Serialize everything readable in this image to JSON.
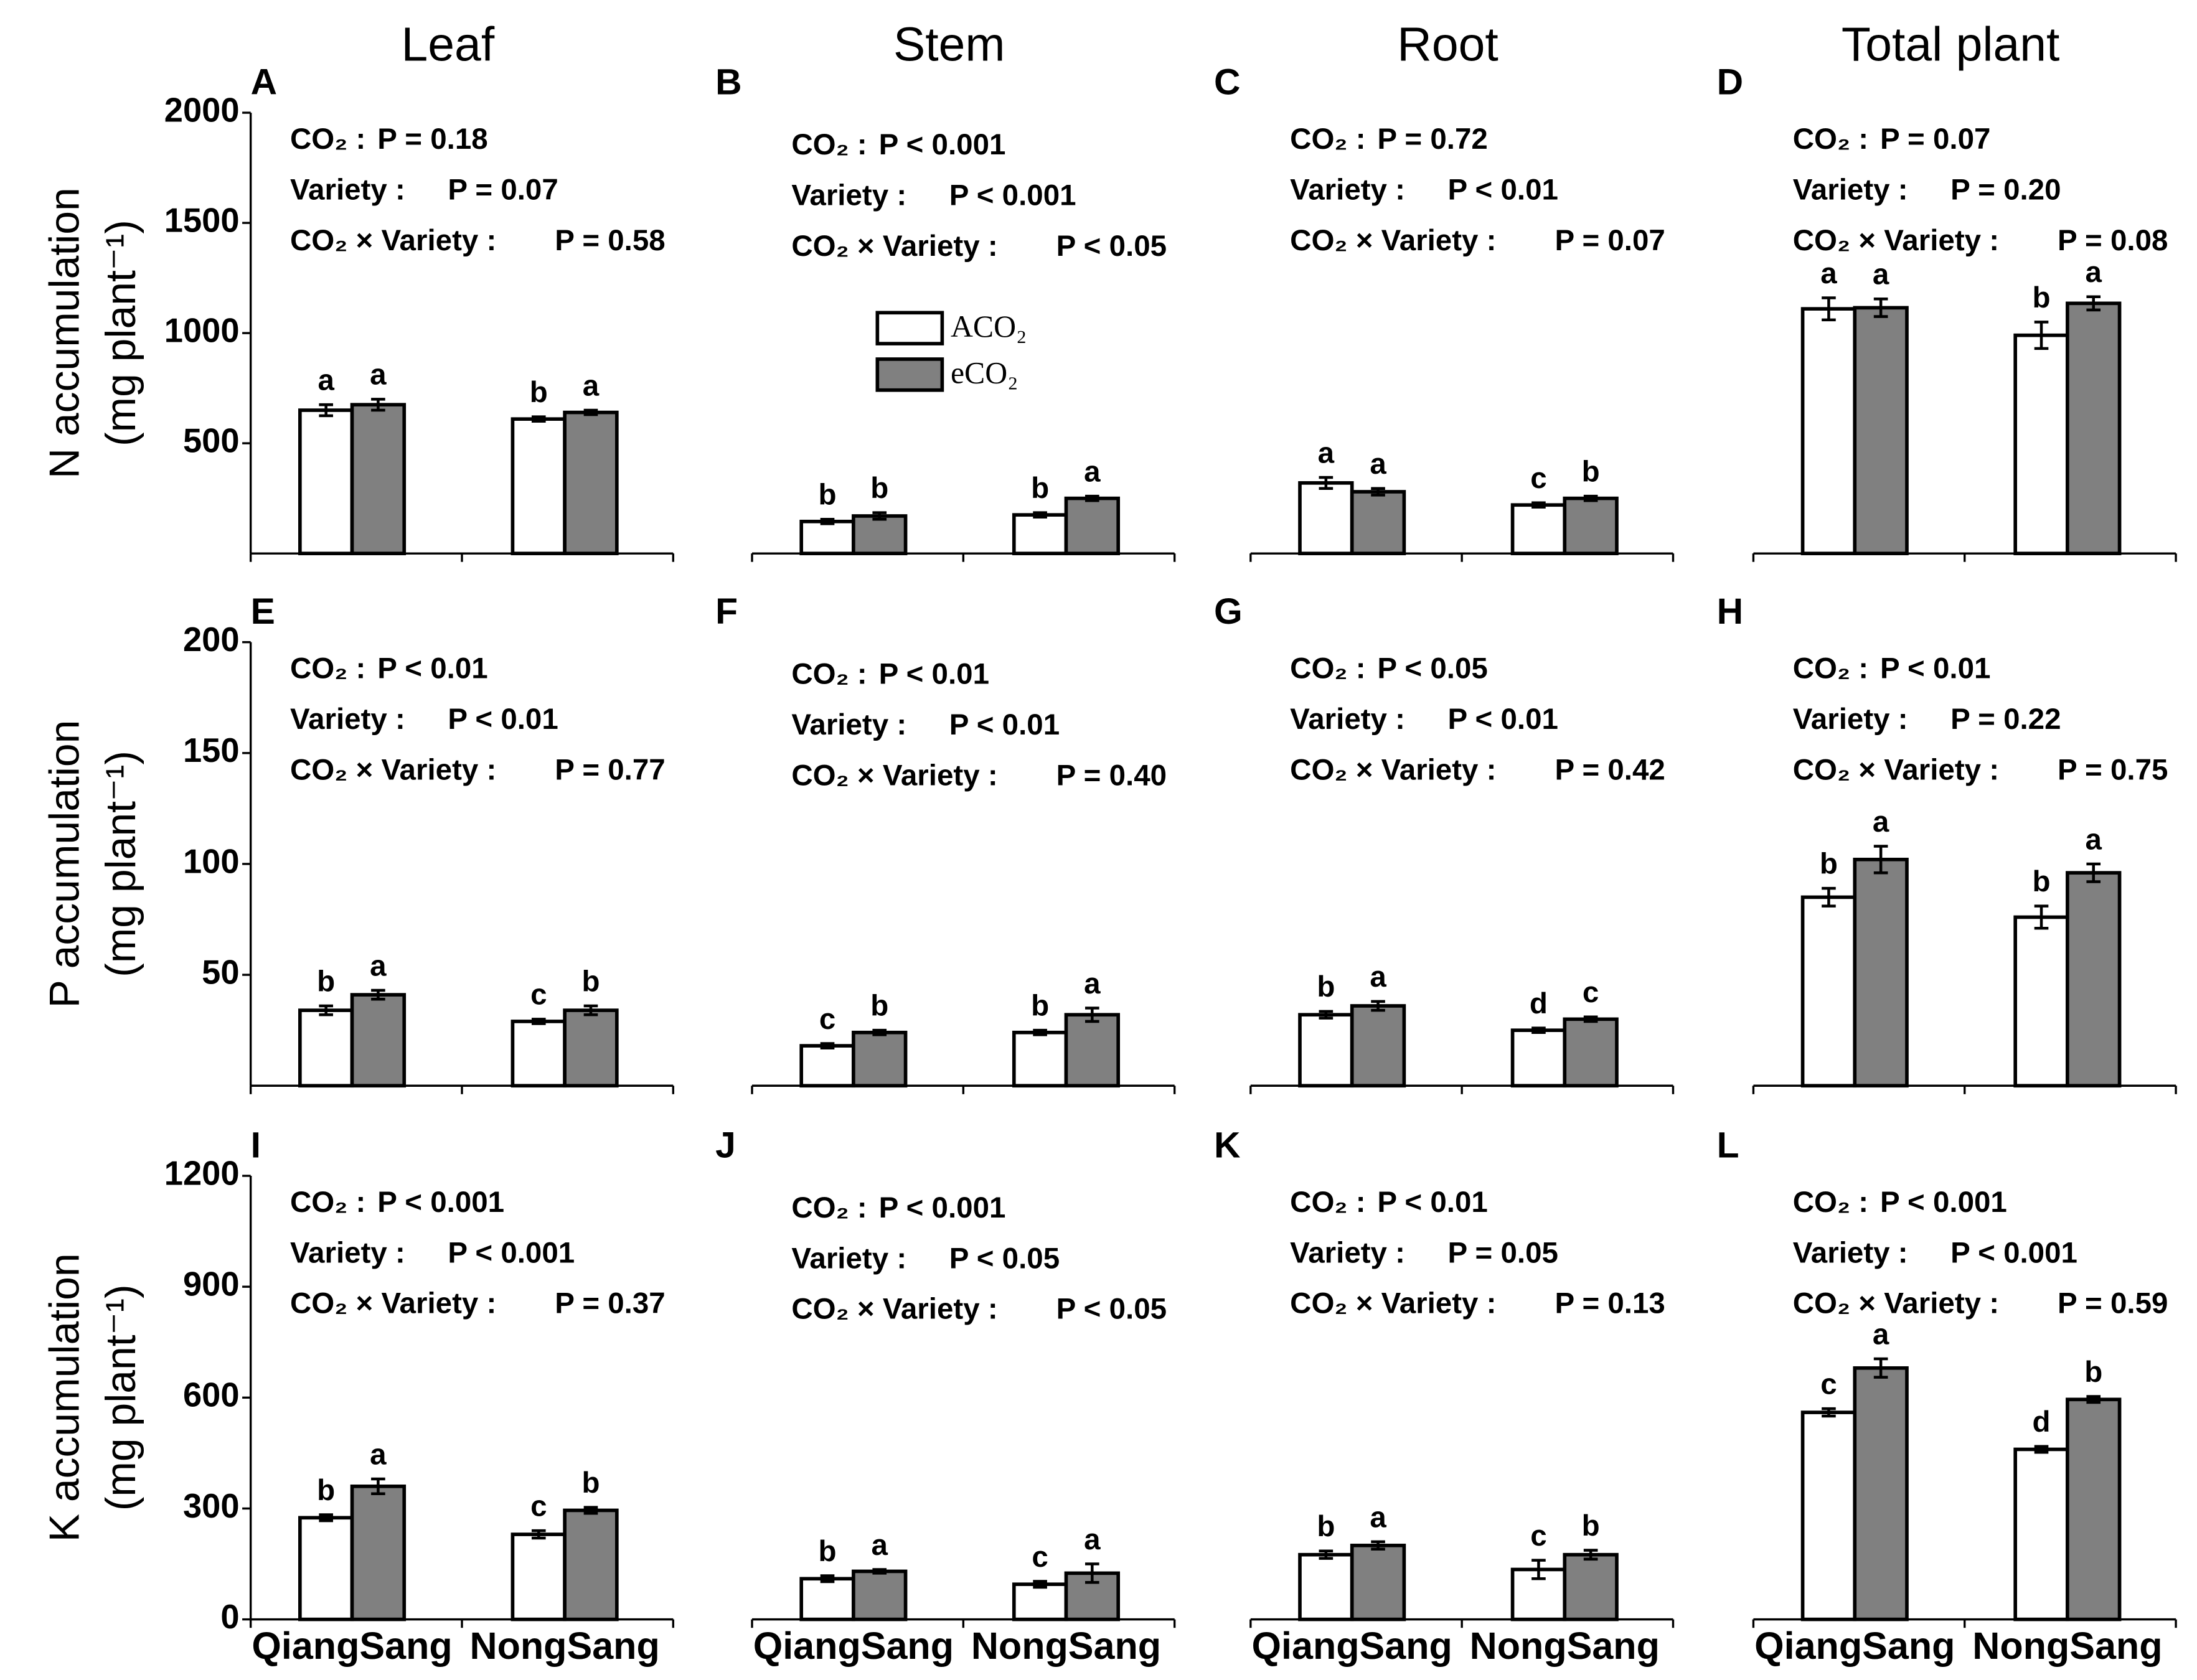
{
  "chart_data": [
    {
      "type": "bar",
      "panel": "A",
      "column_title": "Leaf",
      "ylabel": [
        "N accumulation",
        "(mg plant⁻¹)"
      ],
      "ylim": [
        0,
        2000
      ],
      "yticks": [
        500,
        1000,
        1500,
        2000
      ],
      "stats": [
        {
          "term": "CO₂ :",
          "p": "P = 0.18"
        },
        {
          "term": "Variety :",
          "p": "P = 0.07"
        },
        {
          "term": "CO₂ × Variety :",
          "p": "P = 0.58"
        }
      ],
      "series": [
        {
          "color": "#ffffff",
          "values": [
            650,
            610
          ],
          "errors": [
            25,
            10
          ],
          "letters": [
            "a",
            "b"
          ]
        },
        {
          "color": "#808080",
          "values": [
            675,
            640
          ],
          "errors": [
            25,
            10
          ],
          "letters": [
            "a",
            "a"
          ]
        }
      ]
    },
    {
      "type": "bar",
      "panel": "B",
      "column_title": "Stem",
      "ylim": [
        0,
        2000
      ],
      "stats": [
        {
          "term": "CO₂ :",
          "p": "P < 0.001"
        },
        {
          "term": "Variety :",
          "p": "P < 0.001"
        },
        {
          "term": "CO₂ × Variety :",
          "p": "P < 0.05"
        }
      ],
      "series": [
        {
          "name": "ACO₂",
          "color": "#ffffff",
          "values": [
            145,
            175
          ],
          "errors": [
            10,
            10
          ],
          "letters": [
            "b",
            "b"
          ]
        },
        {
          "name": "eCO₂",
          "color": "#808080",
          "values": [
            170,
            250
          ],
          "errors": [
            15,
            10
          ],
          "letters": [
            "b",
            "a"
          ]
        }
      ]
    },
    {
      "type": "bar",
      "panel": "C",
      "column_title": "Root",
      "ylim": [
        0,
        2000
      ],
      "stats": [
        {
          "term": "CO₂ :",
          "p": "P = 0.72"
        },
        {
          "term": "Variety :",
          "p": "P < 0.01"
        },
        {
          "term": "CO₂ × Variety :",
          "p": "P = 0.07"
        }
      ],
      "series": [
        {
          "color": "#ffffff",
          "values": [
            320,
            220
          ],
          "errors": [
            25,
            10
          ],
          "letters": [
            "a",
            "c"
          ]
        },
        {
          "color": "#808080",
          "values": [
            280,
            250
          ],
          "errors": [
            15,
            10
          ],
          "letters": [
            "a",
            "b"
          ]
        }
      ]
    },
    {
      "type": "bar",
      "panel": "D",
      "column_title": "Total plant",
      "ylim": [
        0,
        2000
      ],
      "stats": [
        {
          "term": "CO₂ :",
          "p": "P = 0.07"
        },
        {
          "term": "Variety :",
          "p": "P = 0.20"
        },
        {
          "term": "CO₂ × Variety :",
          "p": "P = 0.08"
        }
      ],
      "series": [
        {
          "color": "#ffffff",
          "values": [
            1110,
            990
          ],
          "errors": [
            50,
            60
          ],
          "letters": [
            "a",
            "b"
          ]
        },
        {
          "color": "#808080",
          "values": [
            1115,
            1135
          ],
          "errors": [
            40,
            30
          ],
          "letters": [
            "a",
            "a"
          ]
        }
      ]
    },
    {
      "type": "bar",
      "panel": "E",
      "ylabel": [
        "P accumulation",
        "(mg plant⁻¹)"
      ],
      "ylim": [
        0,
        200
      ],
      "yticks": [
        50,
        100,
        150,
        200
      ],
      "stats": [
        {
          "term": "CO₂ :",
          "p": "P < 0.01"
        },
        {
          "term": "Variety :",
          "p": "P < 0.01"
        },
        {
          "term": "CO₂ × Variety :",
          "p": "P = 0.77"
        }
      ],
      "series": [
        {
          "color": "#ffffff",
          "values": [
            34,
            29
          ],
          "errors": [
            2,
            1
          ],
          "letters": [
            "b",
            "c"
          ]
        },
        {
          "color": "#808080",
          "values": [
            41,
            34
          ],
          "errors": [
            2,
            2
          ],
          "letters": [
            "a",
            "b"
          ]
        }
      ]
    },
    {
      "type": "bar",
      "panel": "F",
      "ylim": [
        0,
        200
      ],
      "stats": [
        {
          "term": "CO₂ :",
          "p": "P < 0.01"
        },
        {
          "term": "Variety :",
          "p": "P < 0.01"
        },
        {
          "term": "CO₂ × Variety :",
          "p": "P = 0.40"
        }
      ],
      "series": [
        {
          "color": "#ffffff",
          "values": [
            18,
            24
          ],
          "errors": [
            1,
            1
          ],
          "letters": [
            "c",
            "b"
          ]
        },
        {
          "color": "#808080",
          "values": [
            24,
            32
          ],
          "errors": [
            1,
            3
          ],
          "letters": [
            "b",
            "a"
          ]
        }
      ]
    },
    {
      "type": "bar",
      "panel": "G",
      "ylim": [
        0,
        200
      ],
      "stats": [
        {
          "term": "CO₂ :",
          "p": "P < 0.05"
        },
        {
          "term": "Variety :",
          "p": "P < 0.01"
        },
        {
          "term": "CO₂ × Variety :",
          "p": "P = 0.42"
        }
      ],
      "series": [
        {
          "color": "#ffffff",
          "values": [
            32,
            25
          ],
          "errors": [
            1.5,
            1
          ],
          "letters": [
            "b",
            "d"
          ]
        },
        {
          "color": "#808080",
          "values": [
            36,
            30
          ],
          "errors": [
            2,
            1
          ],
          "letters": [
            "a",
            "c"
          ]
        }
      ]
    },
    {
      "type": "bar",
      "panel": "H",
      "ylim": [
        0,
        200
      ],
      "stats": [
        {
          "term": "CO₂ :",
          "p": "P < 0.01"
        },
        {
          "term": "Variety :",
          "p": "P = 0.22"
        },
        {
          "term": "CO₂ × Variety :",
          "p": "P = 0.75"
        }
      ],
      "series": [
        {
          "color": "#ffffff",
          "values": [
            85,
            76
          ],
          "errors": [
            4,
            5
          ],
          "letters": [
            "b",
            "b"
          ]
        },
        {
          "color": "#808080",
          "values": [
            102,
            96
          ],
          "errors": [
            6,
            4
          ],
          "letters": [
            "a",
            "a"
          ]
        }
      ]
    },
    {
      "type": "bar",
      "panel": "I",
      "ylabel": [
        "K accumulation",
        "(mg plant⁻¹)"
      ],
      "ylim": [
        0,
        1200
      ],
      "yticks": [
        0,
        300,
        600,
        900,
        1200
      ],
      "categories": [
        "QiangSang",
        "NongSang"
      ],
      "stats": [
        {
          "term": "CO₂ :",
          "p": "P < 0.001"
        },
        {
          "term": "Variety :",
          "p": "P < 0.001"
        },
        {
          "term": "CO₂ × Variety :",
          "p": "P = 0.37"
        }
      ],
      "series": [
        {
          "color": "#ffffff",
          "values": [
            275,
            230
          ],
          "errors": [
            8,
            10
          ],
          "letters": [
            "b",
            "c"
          ]
        },
        {
          "color": "#808080",
          "values": [
            360,
            295
          ],
          "errors": [
            20,
            8
          ],
          "letters": [
            "a",
            "b"
          ]
        }
      ]
    },
    {
      "type": "bar",
      "panel": "J",
      "ylim": [
        0,
        1200
      ],
      "categories": [
        "QiangSang",
        "NongSang"
      ],
      "stats": [
        {
          "term": "CO₂ :",
          "p": "P < 0.001"
        },
        {
          "term": "Variety :",
          "p": "P < 0.05"
        },
        {
          "term": "CO₂ × Variety :",
          "p": "P < 0.05"
        }
      ],
      "series": [
        {
          "color": "#ffffff",
          "values": [
            110,
            95
          ],
          "errors": [
            8,
            8
          ],
          "letters": [
            "b",
            "c"
          ]
        },
        {
          "color": "#808080",
          "values": [
            130,
            125
          ],
          "errors": [
            5,
            25
          ],
          "letters": [
            "a",
            "a"
          ]
        }
      ]
    },
    {
      "type": "bar",
      "panel": "K",
      "ylim": [
        0,
        1200
      ],
      "categories": [
        "QiangSang",
        "NongSang"
      ],
      "stats": [
        {
          "term": "CO₂ :",
          "p": "P < 0.01"
        },
        {
          "term": "Variety :",
          "p": "P = 0.05"
        },
        {
          "term": "CO₂ × Variety :",
          "p": "P = 0.13"
        }
      ],
      "series": [
        {
          "color": "#ffffff",
          "values": [
            175,
            135
          ],
          "errors": [
            10,
            25
          ],
          "letters": [
            "b",
            "c"
          ]
        },
        {
          "color": "#808080",
          "values": [
            200,
            175
          ],
          "errors": [
            10,
            12
          ],
          "letters": [
            "a",
            "b"
          ]
        }
      ]
    },
    {
      "type": "bar",
      "panel": "L",
      "ylim": [
        0,
        1200
      ],
      "categories": [
        "QiangSang",
        "NongSang"
      ],
      "stats": [
        {
          "term": "CO₂ :",
          "p": "P < 0.001"
        },
        {
          "term": "Variety :",
          "p": "P < 0.001"
        },
        {
          "term": "CO₂ × Variety :",
          "p": "P = 0.59"
        }
      ],
      "series": [
        {
          "color": "#ffffff",
          "values": [
            560,
            460
          ],
          "errors": [
            10,
            8
          ],
          "letters": [
            "c",
            "d"
          ]
        },
        {
          "color": "#808080",
          "values": [
            680,
            595
          ],
          "errors": [
            25,
            8
          ],
          "letters": [
            "a",
            "b"
          ]
        }
      ]
    }
  ]
}
